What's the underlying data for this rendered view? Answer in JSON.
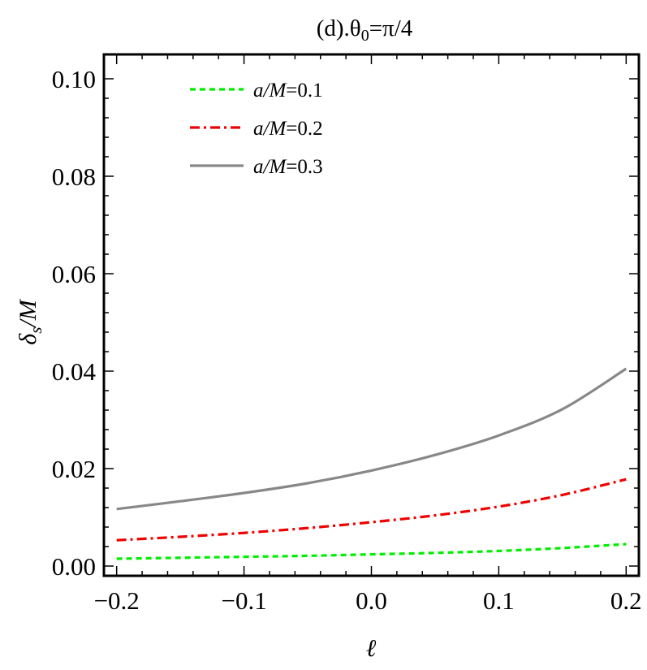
{
  "chart_data": {
    "type": "line",
    "title": "(d).θ0=π/4",
    "xlabel": "ℓ",
    "ylabel": "δs/M",
    "xlim": [
      -0.21,
      0.21
    ],
    "ylim": [
      -0.002,
      0.105
    ],
    "xticks": [
      -0.2,
      -0.1,
      0.0,
      0.1,
      0.2
    ],
    "xtick_labels": [
      "−0.2",
      "−0.1",
      "0.0",
      "0.1",
      "0.2"
    ],
    "yticks": [
      0.0,
      0.02,
      0.04,
      0.06,
      0.08,
      0.1
    ],
    "ytick_labels": [
      "0.00",
      "0.02",
      "0.04",
      "0.06",
      "0.08",
      "0.10"
    ],
    "grid": false,
    "legend_position": "top-left",
    "x": [
      -0.2,
      -0.15,
      -0.1,
      -0.05,
      0.0,
      0.05,
      0.1,
      0.15,
      0.2
    ],
    "series": [
      {
        "name": "a/M=0.1",
        "color": "#00ee00",
        "style": "dashed",
        "values": [
          0.0015,
          0.0017,
          0.0019,
          0.0021,
          0.0024,
          0.0027,
          0.0031,
          0.0037,
          0.0045
        ]
      },
      {
        "name": "a/M=0.2",
        "color": "#ee0000",
        "style": "dashdot",
        "values": [
          0.0053,
          0.006,
          0.0068,
          0.0078,
          0.009,
          0.0104,
          0.0122,
          0.0146,
          0.0178
        ]
      },
      {
        "name": "a/M=0.3",
        "color": "#888888",
        "style": "solid",
        "values": [
          0.0117,
          0.0133,
          0.015,
          0.017,
          0.0196,
          0.0228,
          0.0268,
          0.0322,
          0.0405
        ]
      }
    ]
  }
}
